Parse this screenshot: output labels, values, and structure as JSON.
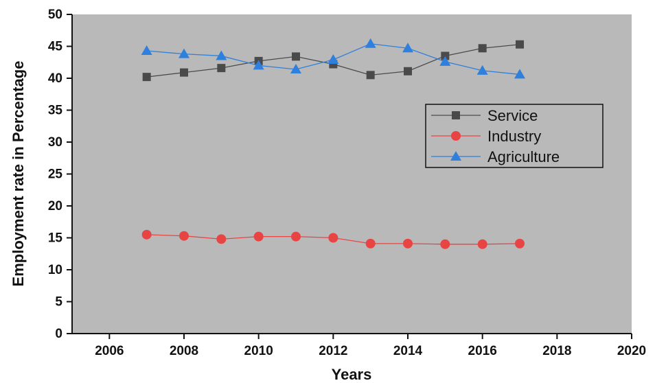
{
  "chart_data": {
    "type": "line",
    "xlabel": "Years",
    "ylabel": "Employment rate in Percentage",
    "xlim": [
      2005,
      2020
    ],
    "ylim": [
      0,
      50
    ],
    "xticks": [
      2006,
      2008,
      2010,
      2012,
      2014,
      2016,
      2018,
      2020
    ],
    "yticks": [
      0,
      5,
      10,
      15,
      20,
      25,
      30,
      35,
      40,
      45,
      50
    ],
    "grid": false,
    "legend_position": "right",
    "background_color": "#b9b9b9",
    "x": [
      2007,
      2008,
      2009,
      2010,
      2011,
      2012,
      2013,
      2014,
      2015,
      2016,
      2017
    ],
    "series": [
      {
        "name": "Service",
        "marker": "square",
        "color": "#4a4a4a",
        "values": [
          40.2,
          40.9,
          41.6,
          42.7,
          43.4,
          42.2,
          40.5,
          41.1,
          43.5,
          44.7,
          45.3
        ]
      },
      {
        "name": "Industry",
        "marker": "circle",
        "color": "#e84444",
        "values": [
          15.5,
          15.3,
          14.8,
          15.2,
          15.2,
          15.0,
          14.1,
          14.1,
          14.0,
          14.0,
          14.1
        ]
      },
      {
        "name": "Agriculture",
        "marker": "triangle",
        "color": "#2f7fdc",
        "values": [
          44.3,
          43.8,
          43.5,
          42.0,
          41.4,
          42.9,
          45.4,
          44.7,
          42.6,
          41.2,
          40.6
        ]
      }
    ]
  }
}
